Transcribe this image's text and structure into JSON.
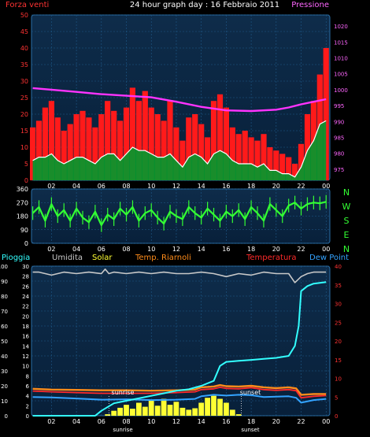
{
  "colors": {
    "background": "#000000",
    "plot_bg_top": "#0b2540",
    "plot_bg_bottom": "#0b2540",
    "grid": "#1f5a8a",
    "wind": "#ff1a1a",
    "wind_gust_bar": "#ff0000",
    "wind_avg": "#ffffff",
    "wind_fill": "#009a2e",
    "pressure": "#ff33ff",
    "direction": "#33ff33",
    "humidity": "#c8c8c8",
    "solar": "#ffff33",
    "temp_riarnoli": "#ff8c1a",
    "temperature": "#ff2a2a",
    "dew_point": "#33a3ff",
    "rain": "#33ffff",
    "axis_red": "#ff3333",
    "axis_pink": "#ff66ff",
    "axis_white": "#ffffff",
    "axis_green": "#33ff33"
  },
  "header": {
    "title": "24 hour graph day : 16 Febbraio 2011",
    "left_label": "Forza venti",
    "right_label": "Pressione"
  },
  "compass_letters": [
    "N",
    "W",
    "S",
    "E",
    "N"
  ],
  "legend": {
    "rain": "Pioggia",
    "humidity": "Umidita",
    "solar": "Solar",
    "temp_riarnoli": "Temp. Riarnoli",
    "temperature": "Temperatura",
    "dew_point": "Dew Point"
  },
  "annotations": {
    "sunrise": "sunrise",
    "sunset": "sunset"
  },
  "chart_data": [
    {
      "type": "area",
      "title": "24 hour graph day : 16 Febbraio 2011",
      "x_ticks": [
        "02",
        "04",
        "06",
        "08",
        "10",
        "12",
        "14",
        "16",
        "18",
        "20",
        "22",
        "00"
      ],
      "x_hours": [
        2,
        4,
        6,
        8,
        10,
        12,
        14,
        16,
        18,
        20,
        22,
        24
      ],
      "xlim": [
        0.4,
        24.3
      ],
      "left_axis": {
        "ticks": [
          0,
          5,
          10,
          15,
          20,
          25,
          30,
          35,
          40,
          45,
          50
        ],
        "ylim": [
          0,
          50
        ]
      },
      "right_axis": {
        "ticks": [
          975,
          980,
          985,
          990,
          995,
          1000,
          1005,
          1010,
          1015,
          1020
        ],
        "ylim": [
          971.5,
          1023.5
        ]
      },
      "series": [
        {
          "name": "Forza venti",
          "kind": "gust",
          "x": [
            0.5,
            1,
            1.5,
            2,
            2.5,
            3,
            3.5,
            4,
            4.5,
            5,
            5.5,
            6,
            6.5,
            7,
            7.5,
            8,
            8.5,
            9,
            9.5,
            10,
            10.5,
            11,
            11.5,
            12,
            12.5,
            13,
            13.5,
            14,
            14.5,
            15,
            15.5,
            16,
            16.5,
            17,
            17.5,
            18,
            18.5,
            19,
            19.5,
            20,
            20.5,
            21,
            21.5,
            22,
            22.5,
            23,
            23.5,
            24
          ],
          "values": [
            16,
            18,
            22,
            24,
            19,
            15,
            17,
            20,
            21,
            19,
            16,
            20,
            24,
            21,
            18,
            22,
            28,
            24,
            27,
            22,
            20,
            18,
            24,
            16,
            12,
            19,
            20,
            17,
            13,
            24,
            26,
            22,
            16,
            14,
            15,
            13,
            12,
            14,
            10,
            9,
            8,
            7,
            5,
            11,
            20,
            24,
            32,
            40
          ]
        },
        {
          "name": "Forza venti",
          "kind": "average",
          "x": [
            0.5,
            1,
            1.5,
            2,
            2.5,
            3,
            3.5,
            4,
            4.5,
            5,
            5.5,
            6,
            6.5,
            7,
            7.5,
            8,
            8.5,
            9,
            9.5,
            10,
            10.5,
            11,
            11.5,
            12,
            12.5,
            13,
            13.5,
            14,
            14.5,
            15,
            15.5,
            16,
            16.5,
            17,
            17.5,
            18,
            18.5,
            19,
            19.5,
            20,
            20.5,
            21,
            21.5,
            22,
            22.5,
            23,
            23.5,
            24
          ],
          "values": [
            6,
            7,
            7,
            8,
            6,
            5,
            6,
            7,
            7,
            6,
            5,
            7,
            8,
            8,
            6,
            8,
            10,
            9,
            9,
            8,
            7,
            7,
            8,
            6,
            4,
            7,
            8,
            7,
            5,
            8,
            9,
            8,
            6,
            5,
            5,
            5,
            4,
            5,
            3,
            3,
            2,
            2,
            1,
            4,
            9,
            12,
            17,
            18
          ]
        },
        {
          "name": "Pressione",
          "kind": "pressure",
          "x": [
            0.5,
            2,
            4,
            6,
            8,
            10,
            12,
            14,
            16,
            18,
            20,
            21,
            22,
            23,
            24
          ],
          "values": [
            1000.5,
            1000,
            999.3,
            998.6,
            998.1,
            997.6,
            996.2,
            994.6,
            993.5,
            993.3,
            993.7,
            994.4,
            995.4,
            996.2,
            997
          ]
        }
      ]
    },
    {
      "type": "line",
      "x_ticks": [
        "02",
        "04",
        "06",
        "08",
        "10",
        "12",
        "14",
        "16",
        "18",
        "20",
        "22",
        "00"
      ],
      "x_hours": [
        2,
        4,
        6,
        8,
        10,
        12,
        14,
        16,
        18,
        20,
        22,
        24
      ],
      "xlim": [
        0.4,
        24.3
      ],
      "left_axis": {
        "ticks": [
          0,
          90,
          180,
          270,
          360
        ],
        "ylim": [
          0,
          360
        ]
      },
      "series": [
        {
          "name": "direction",
          "x": [
            0.5,
            1,
            1.5,
            2,
            2.5,
            3,
            3.5,
            4,
            4.5,
            5,
            5.5,
            6,
            6.5,
            7,
            7.5,
            8,
            8.5,
            9,
            9.5,
            10,
            10.5,
            11,
            11.5,
            12,
            12.5,
            13,
            13.5,
            14,
            14.5,
            15,
            15.5,
            16,
            16.5,
            17,
            17.5,
            18,
            18.5,
            19,
            19.5,
            20,
            20.5,
            21,
            21.5,
            22,
            22.5,
            23,
            23.5,
            24
          ],
          "values": [
            200,
            240,
            150,
            260,
            180,
            220,
            150,
            230,
            170,
            140,
            210,
            120,
            190,
            160,
            230,
            190,
            240,
            150,
            200,
            220,
            170,
            130,
            210,
            180,
            160,
            240,
            200,
            170,
            230,
            190,
            150,
            210,
            180,
            220,
            160,
            240,
            200,
            150,
            260,
            220,
            180,
            250,
            270,
            230,
            260,
            270,
            265,
            275
          ]
        }
      ]
    },
    {
      "type": "line",
      "x_ticks": [
        "02",
        "04",
        "06",
        "08",
        "10",
        "12",
        "14",
        "16",
        "18",
        "20",
        "22",
        "00"
      ],
      "x_hours": [
        2,
        4,
        6,
        8,
        10,
        12,
        14,
        16,
        18,
        20,
        22,
        24
      ],
      "xlim": [
        0.4,
        24.3
      ],
      "left_axis": {
        "ticks": [
          0,
          10,
          20,
          30,
          40,
          50,
          60,
          70,
          80,
          90,
          100
        ],
        "ylim": [
          0,
          100
        ]
      },
      "inner_axis": {
        "ticks": [
          0,
          2,
          4,
          6,
          8,
          10,
          12,
          14,
          16,
          18,
          20,
          22,
          24,
          26,
          28,
          30
        ],
        "ylim": [
          0,
          30
        ]
      },
      "right_axis": {
        "ticks": [
          0,
          5,
          10,
          15,
          20,
          25,
          30,
          35,
          40
        ],
        "ylim": [
          0,
          40
        ]
      },
      "series": [
        {
          "name": "Umidita",
          "axis": "left",
          "x": [
            0.5,
            1,
            2,
            3,
            4,
            5,
            6,
            6.3,
            6.6,
            7,
            8,
            9,
            10,
            11,
            12,
            13,
            14,
            15,
            16,
            17,
            18,
            19,
            20,
            21,
            21.5,
            22,
            22.5,
            23,
            24
          ],
          "values": [
            96,
            96,
            94,
            96,
            95,
            96,
            95,
            98,
            95,
            96,
            95,
            96,
            95,
            96,
            95,
            95,
            96,
            95,
            93,
            95,
            94,
            96,
            95,
            95,
            89,
            93,
            95,
            96,
            96
          ]
        },
        {
          "name": "Pioggia",
          "axis": "inner",
          "x": [
            0.5,
            5.5,
            6,
            7,
            8,
            9,
            10,
            11,
            12,
            13,
            14,
            15,
            15.5,
            16,
            17,
            18,
            19,
            20,
            21,
            21.5,
            21.8,
            22,
            22.5,
            23,
            24
          ],
          "values": [
            0,
            0,
            1,
            2.5,
            3,
            3.5,
            4,
            4.5,
            5,
            5.3,
            6,
            7,
            10,
            10.8,
            11,
            11.2,
            11.4,
            11.6,
            12,
            14,
            18,
            25,
            26,
            26.5,
            26.8
          ]
        },
        {
          "name": "Temp. Riarnoli",
          "axis": "right",
          "x": [
            0.5,
            2,
            4,
            6,
            8,
            10,
            12,
            13.5,
            14,
            15,
            15.5,
            16,
            17,
            18,
            19,
            20,
            21,
            21.6,
            22,
            23,
            24
          ],
          "values": [
            7.2,
            7.0,
            6.9,
            6.8,
            6.8,
            6.7,
            6.8,
            7.0,
            7.6,
            7.8,
            8.2,
            7.9,
            7.8,
            8.0,
            7.6,
            7.4,
            7.6,
            7.3,
            5.6,
            5.8,
            5.8
          ]
        },
        {
          "name": "Temperatura",
          "axis": "right",
          "x": [
            0.5,
            2,
            4,
            6,
            8,
            10,
            12,
            13.5,
            14,
            15,
            15.5,
            16,
            17,
            18,
            19,
            20,
            21,
            21.6,
            22,
            23,
            24
          ],
          "values": [
            6.6,
            6.4,
            6.2,
            6.0,
            6.0,
            6.0,
            6.2,
            6.4,
            7.0,
            7.2,
            7.6,
            7.3,
            7.2,
            7.5,
            7.0,
            6.8,
            7.0,
            6.7,
            4.8,
            5.2,
            5.4
          ]
        },
        {
          "name": "Dew Point",
          "axis": "right",
          "x": [
            0.5,
            2,
            4,
            6,
            8,
            10,
            12,
            13.5,
            14,
            15,
            16,
            17,
            18,
            19,
            20,
            21,
            21.6,
            22,
            23,
            24
          ],
          "values": [
            5.0,
            4.9,
            4.6,
            4.3,
            4.4,
            4.2,
            4.3,
            4.5,
            5.2,
            5.6,
            5.4,
            5.6,
            5.5,
            5.0,
            5.1,
            5.2,
            4.8,
            3.5,
            4.2,
            4.5
          ]
        },
        {
          "name": "Solar",
          "axis": "inner",
          "x": [
            6.5,
            7,
            7.5,
            8,
            8.5,
            9,
            9.5,
            10,
            10.5,
            11,
            11.5,
            12,
            12.5,
            13,
            13.5,
            14,
            14.5,
            15,
            15.5,
            16,
            16.5,
            17
          ],
          "values": [
            0.3,
            1.0,
            1.6,
            2.2,
            1.4,
            2.6,
            1.8,
            3.2,
            2.0,
            3.4,
            2.2,
            2.8,
            1.6,
            1.2,
            1.5,
            2.6,
            3.6,
            4.0,
            3.4,
            2.6,
            1.2,
            0.3
          ]
        }
      ]
    }
  ]
}
